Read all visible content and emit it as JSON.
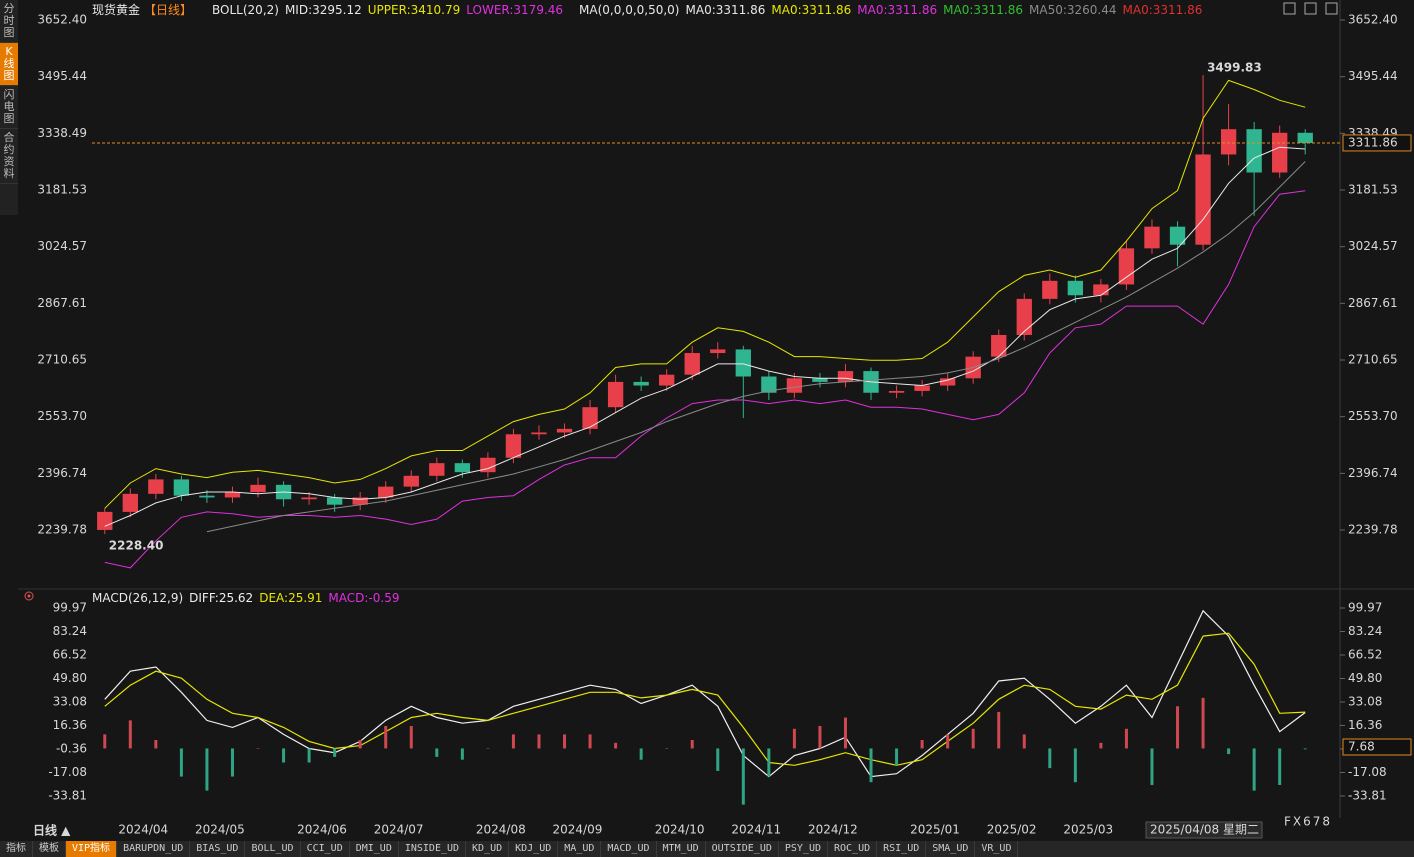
{
  "chart_data": [
    {
      "type": "candlestick",
      "title": "现货黄金",
      "period": "【日线】",
      "indicator": "BOLL(20,2)",
      "ma_label": "MA(0,0,0,0,50,0)",
      "ma_labels": [
        {
          "text": "MA0:3311.86",
          "color": "#e8e8e8"
        },
        {
          "text": "MA0:3311.86",
          "color": "#e6e600"
        },
        {
          "text": "MA0:3311.86",
          "color": "#e030e0"
        },
        {
          "text": "MA0:3311.86",
          "color": "#30c030"
        },
        {
          "text": "MA0:3311.86",
          "color": "#e03030"
        }
      ],
      "categories": [
        null,
        "2024/04",
        null,
        null,
        "2024/05",
        null,
        null,
        null,
        "2024/06",
        null,
        null,
        "2024/07",
        null,
        null,
        null,
        "2024/08",
        null,
        null,
        "2024/09",
        null,
        null,
        null,
        "2024/10",
        null,
        null,
        "2024/11",
        null,
        null,
        "2024/12",
        null,
        null,
        null,
        "2025/01",
        null,
        null,
        "2025/02",
        null,
        null,
        "2025/03",
        null,
        null,
        null,
        "2025/04",
        null,
        null,
        null,
        null,
        null
      ],
      "open": [
        2240,
        2290,
        2340,
        2380,
        2335,
        2330,
        2345,
        2365,
        2325,
        2330,
        2310,
        2330,
        2360,
        2390,
        2425,
        2400,
        2440,
        2505,
        2510,
        2520,
        2580,
        2650,
        2640,
        2670,
        2730,
        2740,
        2665,
        2620,
        2660,
        2650,
        2680,
        2620,
        2625,
        2640,
        2660,
        2720,
        2780,
        2880,
        2930,
        2890,
        2920,
        3020,
        3080,
        3030,
        3280,
        3350,
        3230,
        3340
      ],
      "high": [
        2300,
        2355,
        2395,
        2390,
        2350,
        2360,
        2385,
        2375,
        2345,
        2340,
        2345,
        2375,
        2405,
        2440,
        2435,
        2455,
        2520,
        2530,
        2535,
        2600,
        2670,
        2665,
        2685,
        2750,
        2760,
        2750,
        2680,
        2675,
        2675,
        2700,
        2690,
        2640,
        2655,
        2675,
        2735,
        2795,
        2895,
        2950,
        2945,
        2935,
        3040,
        3100,
        3095,
        3499.83,
        3420,
        3370,
        3360,
        3350
      ],
      "low": [
        2228.4,
        2275,
        2325,
        2320,
        2315,
        2315,
        2330,
        2305,
        2310,
        2290,
        2295,
        2315,
        2345,
        2375,
        2385,
        2385,
        2425,
        2490,
        2495,
        2505,
        2565,
        2625,
        2625,
        2655,
        2715,
        2550,
        2600,
        2605,
        2635,
        2635,
        2600,
        2605,
        2610,
        2625,
        2645,
        2705,
        2765,
        2865,
        2870,
        2870,
        2905,
        3005,
        2970,
        3015,
        3250,
        3110,
        3215,
        3280
      ],
      "close": [
        2290,
        2340,
        2380,
        2335,
        2330,
        2345,
        2365,
        2325,
        2330,
        2310,
        2330,
        2360,
        2390,
        2425,
        2400,
        2440,
        2505,
        2510,
        2520,
        2580,
        2650,
        2640,
        2670,
        2730,
        2740,
        2665,
        2620,
        2660,
        2650,
        2680,
        2620,
        2625,
        2640,
        2660,
        2720,
        2780,
        2880,
        2930,
        2890,
        2920,
        3020,
        3080,
        3030,
        3280,
        3350,
        3230,
        3340,
        3311.86
      ],
      "up_color": "#e8404a",
      "down_color": "#2fb590",
      "series": [
        {
          "name": "MID:3295.12",
          "color": "#e8e8e8",
          "values": [
            2250,
            2280,
            2315,
            2335,
            2345,
            2345,
            2340,
            2345,
            2340,
            2330,
            2325,
            2330,
            2345,
            2370,
            2395,
            2410,
            2440,
            2470,
            2500,
            2525,
            2565,
            2605,
            2630,
            2665,
            2700,
            2700,
            2680,
            2665,
            2660,
            2660,
            2650,
            2645,
            2640,
            2655,
            2680,
            2720,
            2790,
            2850,
            2880,
            2890,
            2940,
            2990,
            3020,
            3100,
            3200,
            3270,
            3300,
            3295.12
          ]
        },
        {
          "name": "UPPER:3410.79",
          "color": "#e6e600",
          "values": [
            2300,
            2370,
            2410,
            2395,
            2385,
            2400,
            2405,
            2395,
            2385,
            2370,
            2380,
            2410,
            2445,
            2460,
            2460,
            2500,
            2540,
            2560,
            2575,
            2620,
            2690,
            2700,
            2700,
            2760,
            2800,
            2790,
            2760,
            2720,
            2720,
            2715,
            2710,
            2710,
            2715,
            2760,
            2830,
            2900,
            2945,
            2960,
            2940,
            2960,
            3040,
            3130,
            3180,
            3380,
            3485,
            3460,
            3430,
            3410.79
          ]
        },
        {
          "name": "LOWER:3179.46",
          "color": "#e030e0",
          "values": [
            2150,
            2135,
            2210,
            2275,
            2290,
            2285,
            2275,
            2280,
            2280,
            2275,
            2280,
            2270,
            2255,
            2270,
            2320,
            2330,
            2335,
            2380,
            2420,
            2440,
            2440,
            2500,
            2550,
            2590,
            2600,
            2600,
            2590,
            2600,
            2590,
            2600,
            2580,
            2580,
            2575,
            2560,
            2545,
            2560,
            2620,
            2730,
            2800,
            2810,
            2860,
            2860,
            2860,
            2810,
            2920,
            3080,
            3170,
            3179.46
          ]
        },
        {
          "name": "MA50:3260.44",
          "color": "#8a8a8a",
          "values": [
            null,
            null,
            null,
            null,
            2235,
            2250,
            2265,
            2280,
            2290,
            2300,
            2310,
            2320,
            2335,
            2350,
            2365,
            2380,
            2395,
            2415,
            2435,
            2460,
            2485,
            2510,
            2540,
            2565,
            2590,
            2610,
            2625,
            2635,
            2645,
            2650,
            2655,
            2660,
            2665,
            2675,
            2690,
            2715,
            2745,
            2780,
            2815,
            2850,
            2885,
            2925,
            2965,
            3010,
            3060,
            3120,
            3190,
            3260.44
          ]
        }
      ],
      "ylim": [
        2082,
        3652.4
      ],
      "yticks": [
        {
          "value": 3652.4,
          "label": "3652.40"
        },
        {
          "value": 3495.44,
          "label": "3495.44"
        },
        {
          "value": 3338.49,
          "label": "3338.49"
        },
        {
          "value": 3181.53,
          "label": "3181.53"
        },
        {
          "value": 3024.57,
          "label": "3024.57"
        },
        {
          "value": 2867.61,
          "label": "2867.61"
        },
        {
          "value": 2710.65,
          "label": "2710.65"
        },
        {
          "value": 2553.7,
          "label": "2553.70"
        },
        {
          "value": 2396.74,
          "label": "2396.74"
        },
        {
          "value": 2239.78,
          "label": "2239.78"
        }
      ],
      "annotations": [
        {
          "text": "3499.83",
          "color": "#ff4a4a"
        },
        {
          "text": "2228.40",
          "color": "#3cc090"
        }
      ],
      "price_tag": "3311.86",
      "price_line_color": "#e08a20"
    },
    {
      "type": "macd",
      "title": "MACD(26,12,9)",
      "series": [
        {
          "name": "DIFF:25.62",
          "type": "line",
          "color": "#f0f0f0",
          "values": [
            35,
            55,
            58,
            40,
            20,
            15,
            22,
            10,
            0,
            -3,
            5,
            20,
            30,
            22,
            18,
            20,
            30,
            35,
            40,
            45,
            42,
            32,
            38,
            45,
            30,
            -5,
            -20,
            -5,
            0,
            8,
            -20,
            -18,
            -5,
            10,
            25,
            48,
            50,
            35,
            18,
            30,
            45,
            22,
            60,
            98,
            80,
            45,
            12,
            25.62
          ]
        },
        {
          "name": "DEA:25.91",
          "type": "line",
          "color": "#e6e600",
          "values": [
            30,
            45,
            55,
            50,
            35,
            25,
            22,
            15,
            5,
            0,
            2,
            12,
            22,
            25,
            22,
            20,
            25,
            30,
            35,
            40,
            40,
            36,
            38,
            42,
            38,
            15,
            -10,
            -12,
            -8,
            -3,
            -8,
            -12,
            -8,
            5,
            18,
            35,
            45,
            42,
            30,
            28,
            38,
            35,
            45,
            80,
            82,
            60,
            25,
            25.91
          ]
        },
        {
          "name": "MACD:-0.59",
          "type": "bar",
          "color": "#e030e0",
          "up_color": "#d0484f",
          "down_color": "#2fa585",
          "values": [
            10,
            20,
            6,
            -20,
            -30,
            -20,
            0,
            -10,
            -10,
            -6,
            6,
            16,
            16,
            -6,
            -8,
            0,
            10,
            10,
            10,
            10,
            4,
            -8,
            0,
            6,
            -16,
            -40,
            -20,
            14,
            16,
            22,
            -24,
            -12,
            6,
            10,
            14,
            26,
            10,
            -14,
            -24,
            4,
            14,
            -26,
            30,
            36,
            -4,
            -30,
            -26,
            -0.59
          ]
        }
      ],
      "ylim": [
        -49.5,
        99.97
      ],
      "yticks": [
        99.97,
        83.24,
        66.52,
        {
          "value": 49.8,
          "label": "49.80"
        },
        33.08,
        16.36,
        -0.36,
        -17.08,
        -33.81
      ],
      "value_tag": "7.68"
    }
  ],
  "ui": {
    "sidebar_tabs": [
      "分时图",
      "K线图",
      "闪电图",
      "合约资料"
    ],
    "active_sidebar": 1,
    "period_button": "日线 ▲",
    "watermark": "FX678",
    "date_tooltip": "2025/04/08 星期二",
    "bottom_tabs": [
      "指标",
      "模板",
      "VIP指标",
      "BARUPDN_UD",
      "BIAS_UD",
      "BOLL_UD",
      "CCI_UD",
      "DMI_UD",
      "INSIDE_UD",
      "KD_UD",
      "KDJ_UD",
      "MA_UD",
      "MACD_UD",
      "MTM_UD",
      "OUTSIDE_UD",
      "PSY_UD",
      "ROC_UD",
      "RSI_UD",
      "SMA_UD",
      "VR_UD"
    ],
    "active_bottom": 2
  }
}
